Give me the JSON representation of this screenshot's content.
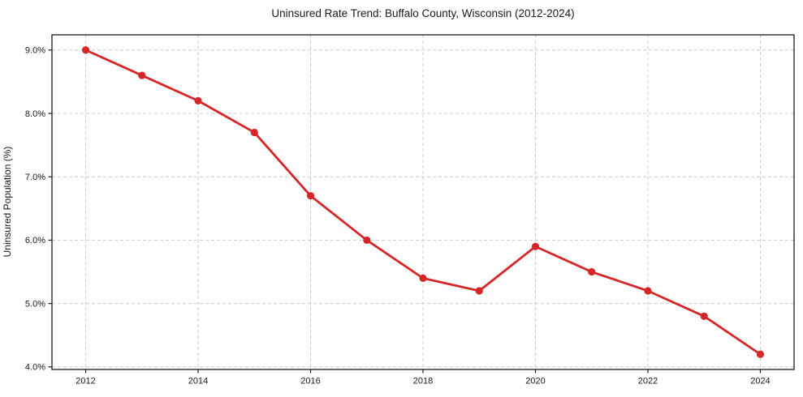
{
  "title": "Uninsured Rate Trend: Buffalo County, Wisconsin (2012-2024)",
  "chart_data": {
    "type": "line",
    "title": "Uninsured Rate Trend: Buffalo County, Wisconsin (2012-2024)",
    "xlabel": "",
    "ylabel": "Uninsured Population (%)",
    "x": [
      2012,
      2013,
      2014,
      2015,
      2016,
      2017,
      2018,
      2019,
      2020,
      2021,
      2022,
      2023,
      2024
    ],
    "values": [
      9.0,
      8.6,
      8.2,
      7.7,
      6.7,
      6.0,
      5.4,
      5.2,
      5.9,
      5.5,
      5.2,
      4.8,
      4.2
    ],
    "xlim": [
      2011.4,
      2024.6
    ],
    "ylim": [
      3.96,
      9.24
    ],
    "x_ticks": [
      2012,
      2014,
      2016,
      2018,
      2020,
      2022,
      2024
    ],
    "y_ticks": [
      4.0,
      5.0,
      6.0,
      7.0,
      8.0,
      9.0
    ],
    "y_tick_suffix": "%",
    "y_tick_decimals": 1,
    "grid": true,
    "grid_style": "dashed",
    "legend": null,
    "colors": {
      "line": "#d62728",
      "marker": "#d62728",
      "grid": "#cccccc",
      "frame": "#1a1a1a",
      "text": "#1a1a1a",
      "background": "#ffffff"
    }
  }
}
